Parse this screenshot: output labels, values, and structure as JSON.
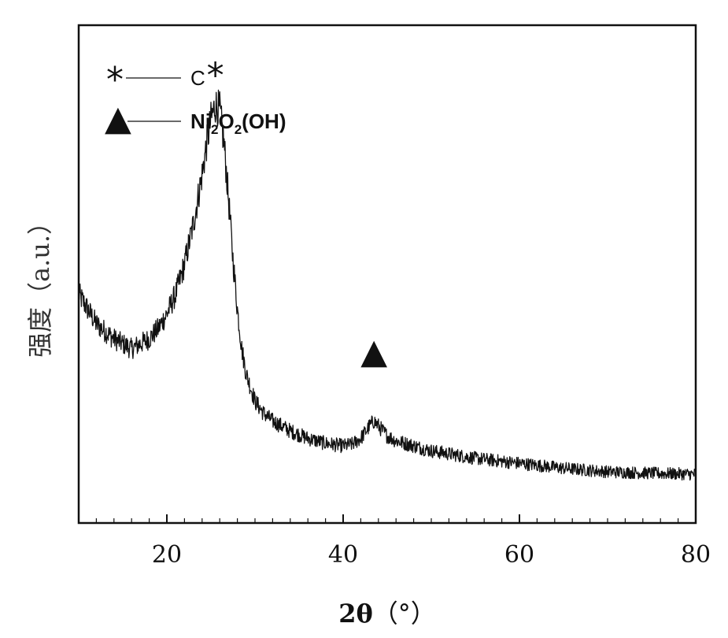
{
  "chart_data": {
    "type": "line",
    "xlabel_main": "2θ",
    "xlabel_unit": "（°）",
    "ylabel": "强度（a.u.）",
    "xlim": [
      10,
      80
    ],
    "ylim": [
      0,
      100
    ],
    "x_ticks": [
      20,
      40,
      60,
      80
    ],
    "y_ticks_labeled": false,
    "legend": {
      "placement": "top-left",
      "entries": [
        {
          "symbol": "*",
          "label": "C"
        },
        {
          "symbol": "▲",
          "label_parts": [
            "Ni",
            "2",
            "O",
            "2",
            "(OH)"
          ]
        }
      ]
    },
    "annotations": [
      {
        "symbol": "*",
        "x": 25.5,
        "y": 92
      },
      {
        "symbol": "▲",
        "x": 43.5,
        "y": 34
      }
    ],
    "series": [
      {
        "x": [
          10,
          12,
          14,
          15,
          16,
          17,
          18,
          19,
          20,
          21,
          22,
          23,
          24,
          24.5,
          25,
          25.5,
          26,
          26.5,
          27,
          27.5,
          28,
          28.5,
          29,
          30,
          31,
          32,
          34,
          36,
          38,
          40,
          41,
          42,
          43,
          43.5,
          44,
          45,
          46,
          48,
          50,
          55,
          60,
          65,
          70,
          75,
          80
        ],
        "y": [
          46,
          40,
          37,
          36,
          35,
          36,
          37,
          39,
          42,
          46,
          52,
          60,
          70,
          76,
          81,
          84,
          83,
          76,
          65,
          53,
          43,
          35,
          30,
          24.5,
          22,
          20.5,
          18.5,
          17,
          16,
          15.5,
          15.8,
          17,
          19.5,
          20.5,
          19.5,
          17.5,
          16.5,
          15.5,
          14.5,
          13,
          12,
          11,
          10.3,
          10,
          9.8
        ]
      }
    ]
  }
}
